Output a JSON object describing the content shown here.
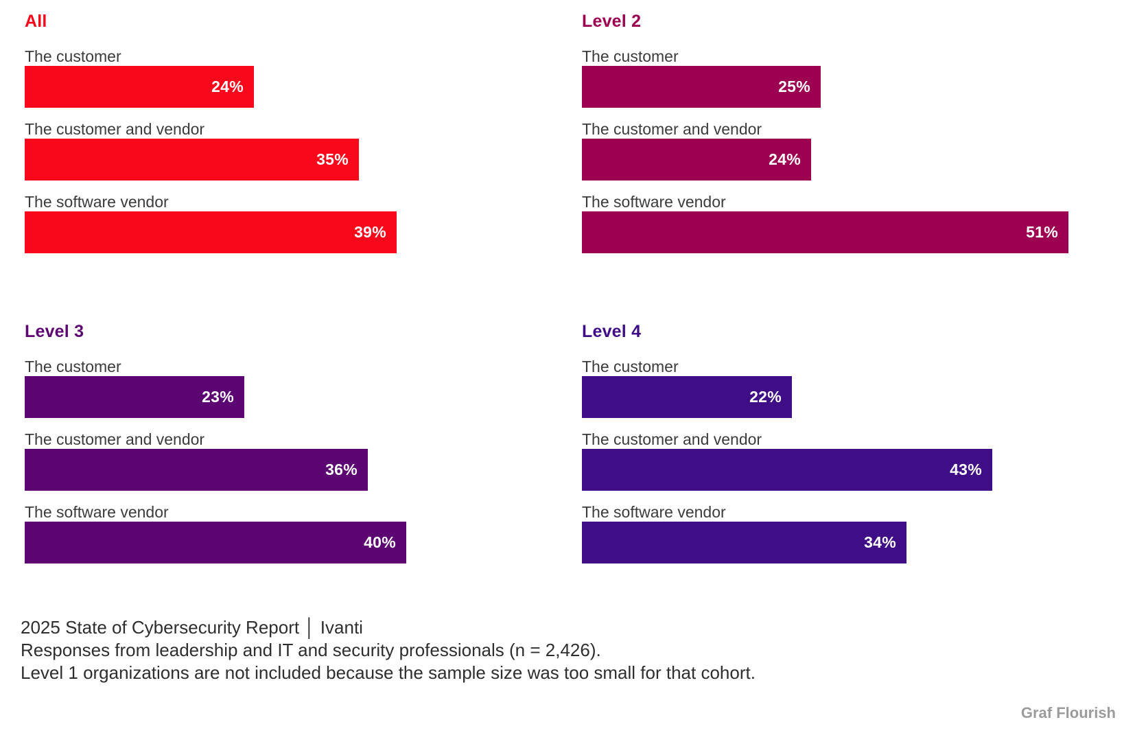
{
  "chart_data": {
    "type": "bar",
    "orientation": "horizontal",
    "unit": "%",
    "xlim": [
      0,
      55
    ],
    "grid": false,
    "legend": "none",
    "categories": [
      "The customer",
      "The customer and vendor",
      "The software vendor"
    ],
    "panels": [
      {
        "title": "All",
        "color": "#f9071a",
        "items": [
          {
            "label": "The customer",
            "value": 24,
            "value_label": "24%"
          },
          {
            "label": "The customer and vendor",
            "value": 35,
            "value_label": "35%"
          },
          {
            "label": "The software vendor",
            "value": 39,
            "value_label": "39%"
          }
        ]
      },
      {
        "title": "Level 2",
        "color": "#9d0051",
        "items": [
          {
            "label": "The customer",
            "value": 25,
            "value_label": "25%"
          },
          {
            "label": "The customer and vendor",
            "value": 24,
            "value_label": "24%"
          },
          {
            "label": "The software vendor",
            "value": 51,
            "value_label": "51%"
          }
        ]
      },
      {
        "title": "Level 3",
        "color": "#5c0472",
        "items": [
          {
            "label": "The customer",
            "value": 23,
            "value_label": "23%"
          },
          {
            "label": "The customer and vendor",
            "value": 36,
            "value_label": "36%"
          },
          {
            "label": "The software vendor",
            "value": 40,
            "value_label": "40%"
          }
        ]
      },
      {
        "title": "Level 4",
        "color": "#3f0e87",
        "items": [
          {
            "label": "The customer",
            "value": 22,
            "value_label": "22%"
          },
          {
            "label": "The customer and vendor",
            "value": 43,
            "value_label": "43%"
          },
          {
            "label": "The software vendor",
            "value": 34,
            "value_label": "34%"
          }
        ]
      }
    ]
  },
  "footer": {
    "lines": [
      "2025 State of Cybersecurity Report │ Ivanti",
      "Responses from leadership and IT and security professionals (n = 2,426).",
      "Level 1 organizations are not included because the sample size was too small for that cohort."
    ]
  },
  "watermark": {
    "label": "Graf Flourish"
  }
}
